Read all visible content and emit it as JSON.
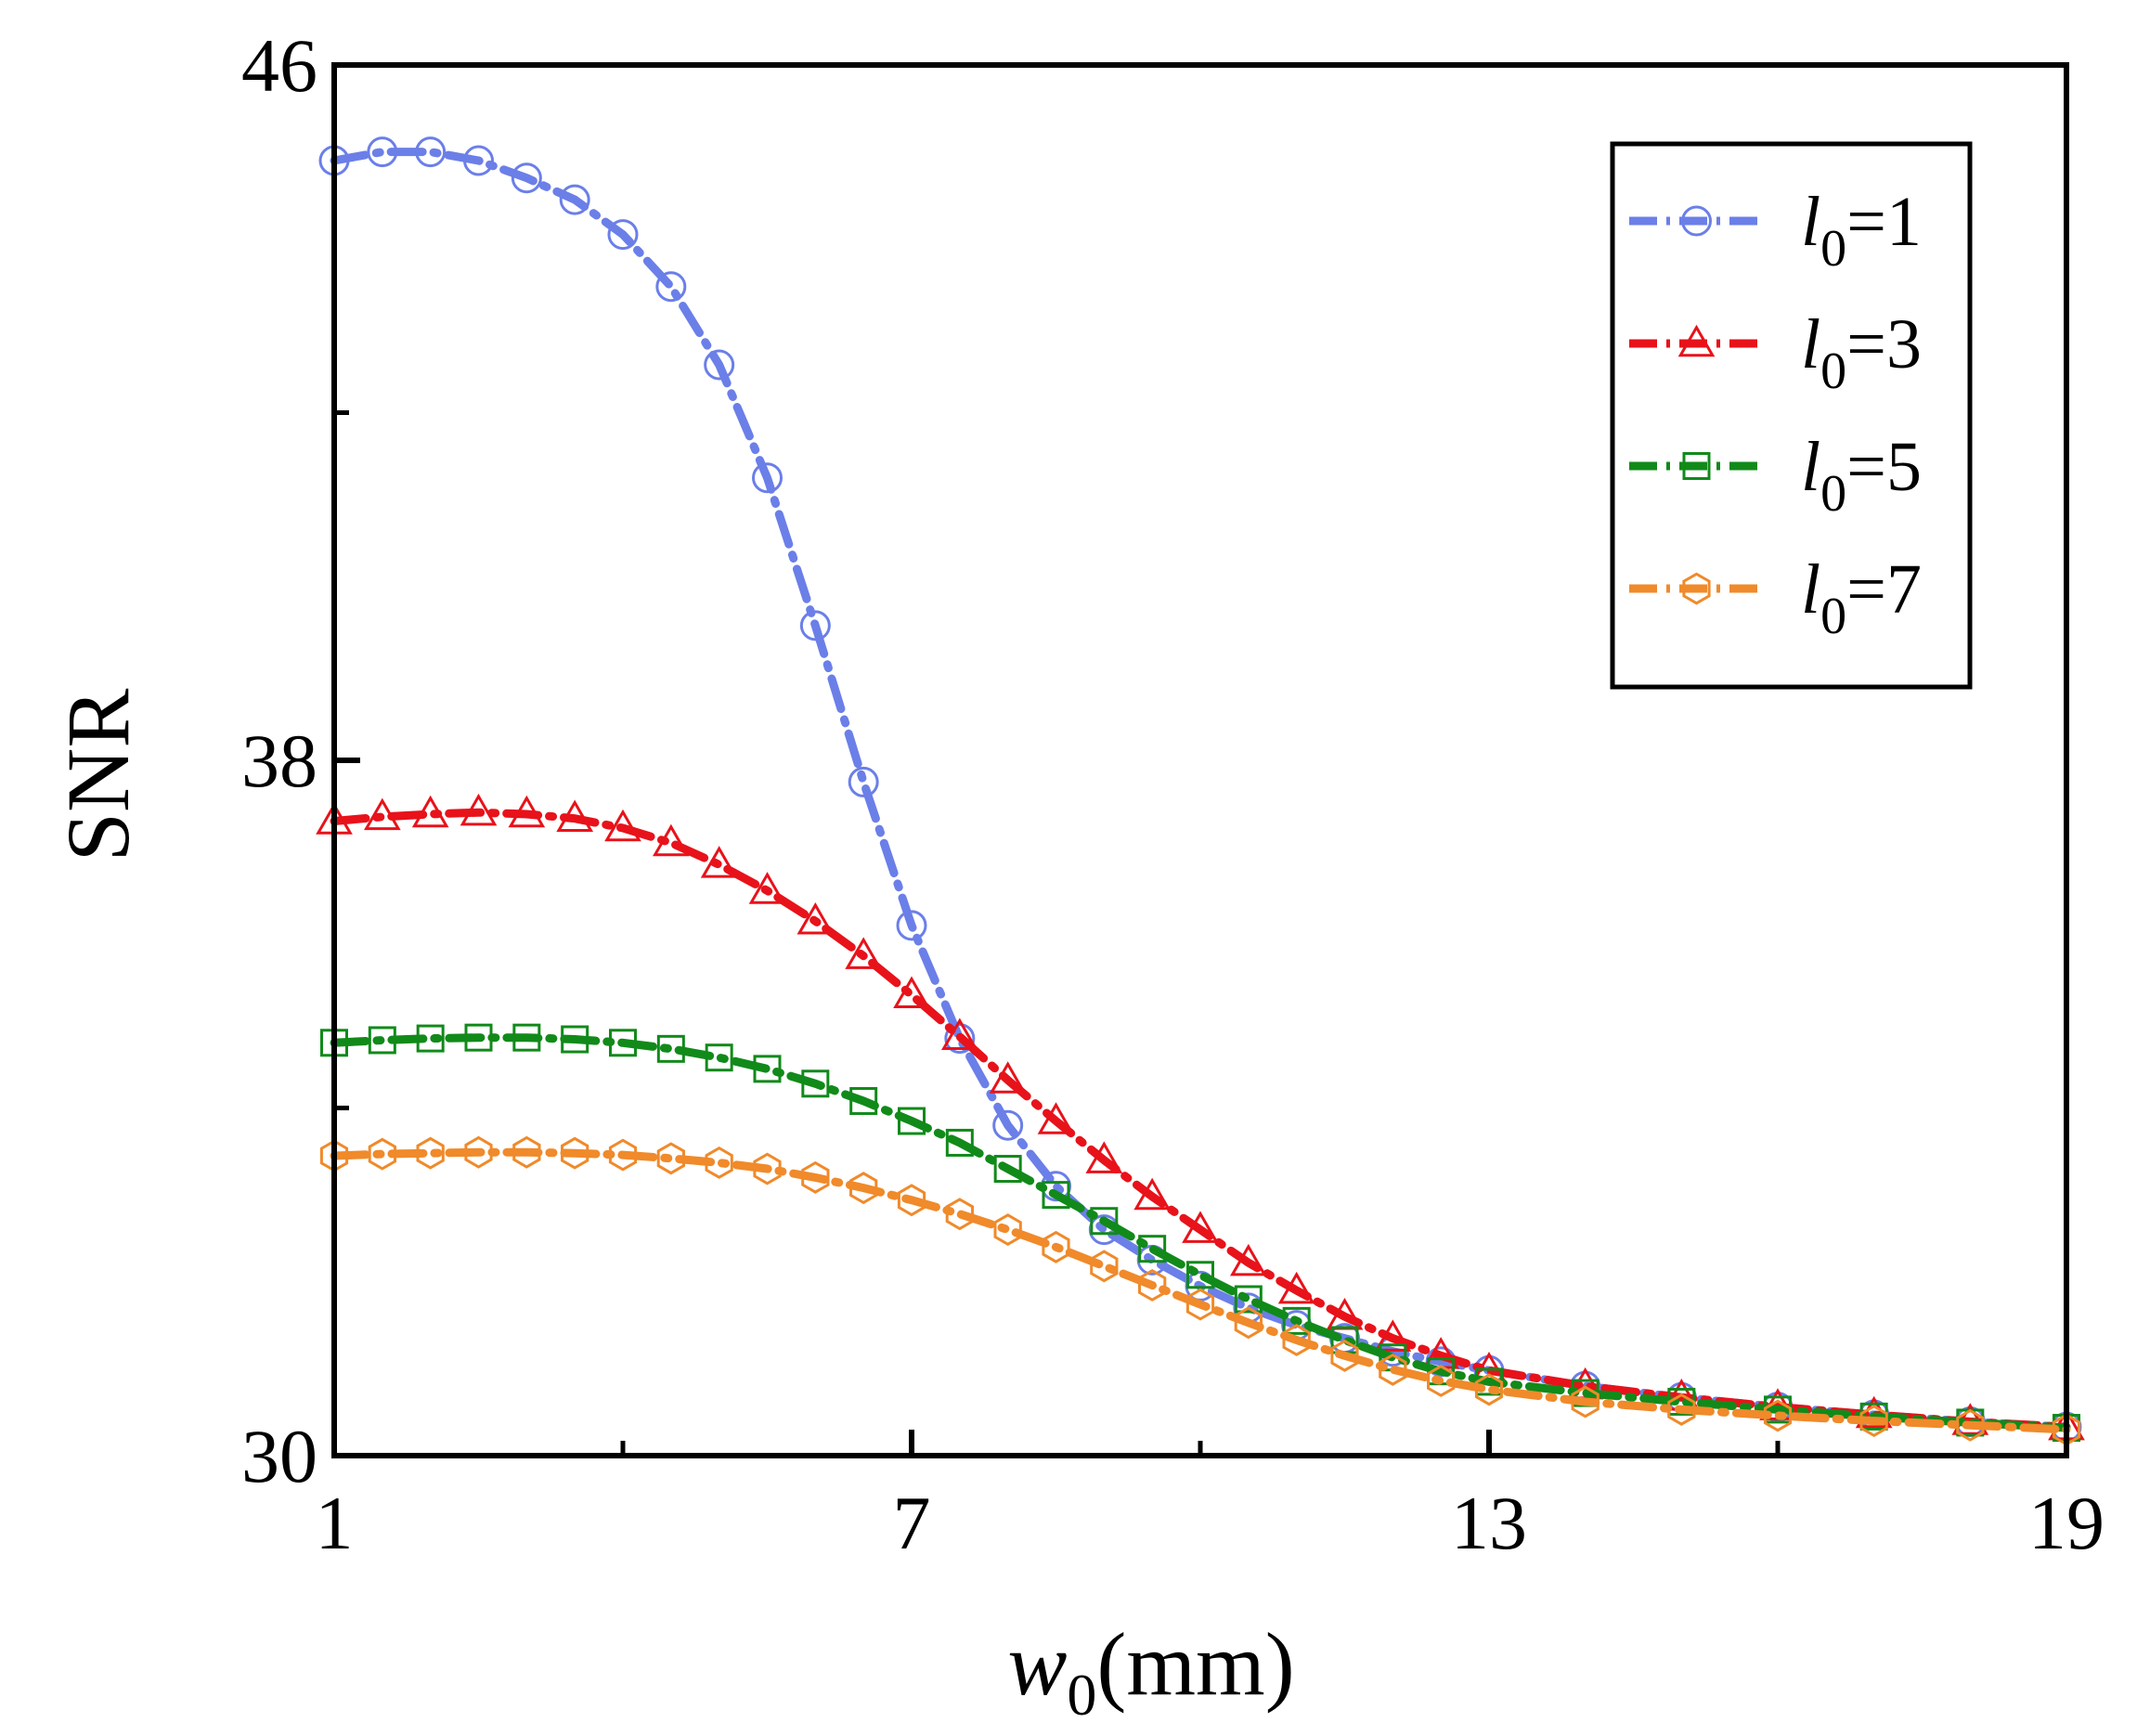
{
  "chart_data": {
    "type": "line",
    "title": "",
    "xlabel": {
      "var": "w",
      "sub": "0",
      "unit": "(mm)"
    },
    "ylabel": "SNR",
    "xlim": [
      1,
      19
    ],
    "ylim": [
      30,
      46
    ],
    "x_ticks": [
      "1",
      "7",
      "13",
      "19"
    ],
    "y_ticks": [
      "30",
      "38",
      "46"
    ],
    "legend_position": "top-right",
    "series": [
      {
        "name": "l0=1",
        "label_var": "l",
        "label_sub": "0",
        "label_value": "=1",
        "color": "#6b7fe8",
        "marker": "circle",
        "points": [
          [
            1,
            44.9
          ],
          [
            1.5,
            45.0
          ],
          [
            2,
            45.0
          ],
          [
            2.5,
            44.9
          ],
          [
            3,
            44.7
          ],
          [
            3.5,
            44.45
          ],
          [
            4,
            44.05
          ],
          [
            4.5,
            43.45
          ],
          [
            5,
            42.55
          ],
          [
            5.5,
            41.25
          ],
          [
            6,
            39.55
          ],
          [
            6.5,
            37.75
          ],
          [
            7,
            36.1
          ],
          [
            7.5,
            34.8
          ],
          [
            8,
            33.8
          ],
          [
            8.5,
            33.1
          ],
          [
            9,
            32.6
          ],
          [
            9.5,
            32.25
          ],
          [
            10,
            31.95
          ],
          [
            10.5,
            31.7
          ],
          [
            11,
            31.5
          ],
          [
            11.5,
            31.35
          ],
          [
            12,
            31.2
          ],
          [
            12.5,
            31.08
          ],
          [
            13,
            30.98
          ],
          [
            14,
            30.8
          ],
          [
            15,
            30.67
          ],
          [
            16,
            30.56
          ],
          [
            17,
            30.47
          ],
          [
            18,
            30.39
          ],
          [
            19,
            30.33
          ]
        ]
      },
      {
        "name": "l0=3",
        "label_var": "l",
        "label_sub": "0",
        "label_value": "=3",
        "color": "#e8121a",
        "marker": "triangle",
        "points": [
          [
            1,
            37.3
          ],
          [
            1.5,
            37.35
          ],
          [
            2,
            37.38
          ],
          [
            2.5,
            37.4
          ],
          [
            3,
            37.38
          ],
          [
            3.5,
            37.33
          ],
          [
            4,
            37.22
          ],
          [
            4.5,
            37.05
          ],
          [
            5,
            36.8
          ],
          [
            5.5,
            36.5
          ],
          [
            6,
            36.15
          ],
          [
            6.5,
            35.75
          ],
          [
            7,
            35.3
          ],
          [
            7.5,
            34.82
          ],
          [
            8,
            34.32
          ],
          [
            8.5,
            33.85
          ],
          [
            9,
            33.4
          ],
          [
            9.5,
            32.98
          ],
          [
            10,
            32.6
          ],
          [
            10.5,
            32.22
          ],
          [
            11,
            31.9
          ],
          [
            11.5,
            31.6
          ],
          [
            12,
            31.35
          ],
          [
            12.5,
            31.15
          ],
          [
            13,
            30.98
          ],
          [
            14,
            30.8
          ],
          [
            15,
            30.67
          ],
          [
            16,
            30.56
          ],
          [
            17,
            30.47
          ],
          [
            18,
            30.39
          ],
          [
            19,
            30.33
          ]
        ]
      },
      {
        "name": "l0=5",
        "label_var": "l",
        "label_sub": "0",
        "label_value": "=5",
        "color": "#118a1a",
        "marker": "square",
        "points": [
          [
            1,
            34.75
          ],
          [
            1.5,
            34.78
          ],
          [
            2,
            34.8
          ],
          [
            2.5,
            34.81
          ],
          [
            3,
            34.81
          ],
          [
            3.5,
            34.79
          ],
          [
            4,
            34.75
          ],
          [
            4.5,
            34.68
          ],
          [
            5,
            34.58
          ],
          [
            5.5,
            34.45
          ],
          [
            6,
            34.28
          ],
          [
            6.5,
            34.08
          ],
          [
            7,
            33.85
          ],
          [
            7.5,
            33.6
          ],
          [
            8,
            33.3
          ],
          [
            8.5,
            33.0
          ],
          [
            9,
            32.7
          ],
          [
            9.5,
            32.38
          ],
          [
            10,
            32.08
          ],
          [
            10.5,
            31.8
          ],
          [
            11,
            31.55
          ],
          [
            11.5,
            31.33
          ],
          [
            12,
            31.13
          ],
          [
            12.5,
            30.97
          ],
          [
            13,
            30.85
          ],
          [
            14,
            30.72
          ],
          [
            15,
            30.62
          ],
          [
            16,
            30.53
          ],
          [
            17,
            30.45
          ],
          [
            18,
            30.38
          ],
          [
            19,
            30.32
          ]
        ]
      },
      {
        "name": "l0=7",
        "label_var": "l",
        "label_sub": "0",
        "label_value": "=7",
        "color": "#f08a2a",
        "marker": "hexagon",
        "points": [
          [
            1,
            33.45
          ],
          [
            1.5,
            33.47
          ],
          [
            2,
            33.48
          ],
          [
            2.5,
            33.49
          ],
          [
            3,
            33.49
          ],
          [
            3.5,
            33.48
          ],
          [
            4,
            33.46
          ],
          [
            4.5,
            33.42
          ],
          [
            5,
            33.37
          ],
          [
            5.5,
            33.3
          ],
          [
            6,
            33.2
          ],
          [
            6.5,
            33.08
          ],
          [
            7,
            32.94
          ],
          [
            7.5,
            32.78
          ],
          [
            8,
            32.6
          ],
          [
            8.5,
            32.4
          ],
          [
            9,
            32.18
          ],
          [
            9.5,
            31.96
          ],
          [
            10,
            31.74
          ],
          [
            10.5,
            31.53
          ],
          [
            11,
            31.33
          ],
          [
            11.5,
            31.15
          ],
          [
            12,
            30.99
          ],
          [
            12.5,
            30.86
          ],
          [
            13,
            30.76
          ],
          [
            14,
            30.62
          ],
          [
            15,
            30.53
          ],
          [
            16,
            30.46
          ],
          [
            17,
            30.4
          ],
          [
            18,
            30.35
          ],
          [
            19,
            30.3
          ]
        ]
      }
    ]
  }
}
